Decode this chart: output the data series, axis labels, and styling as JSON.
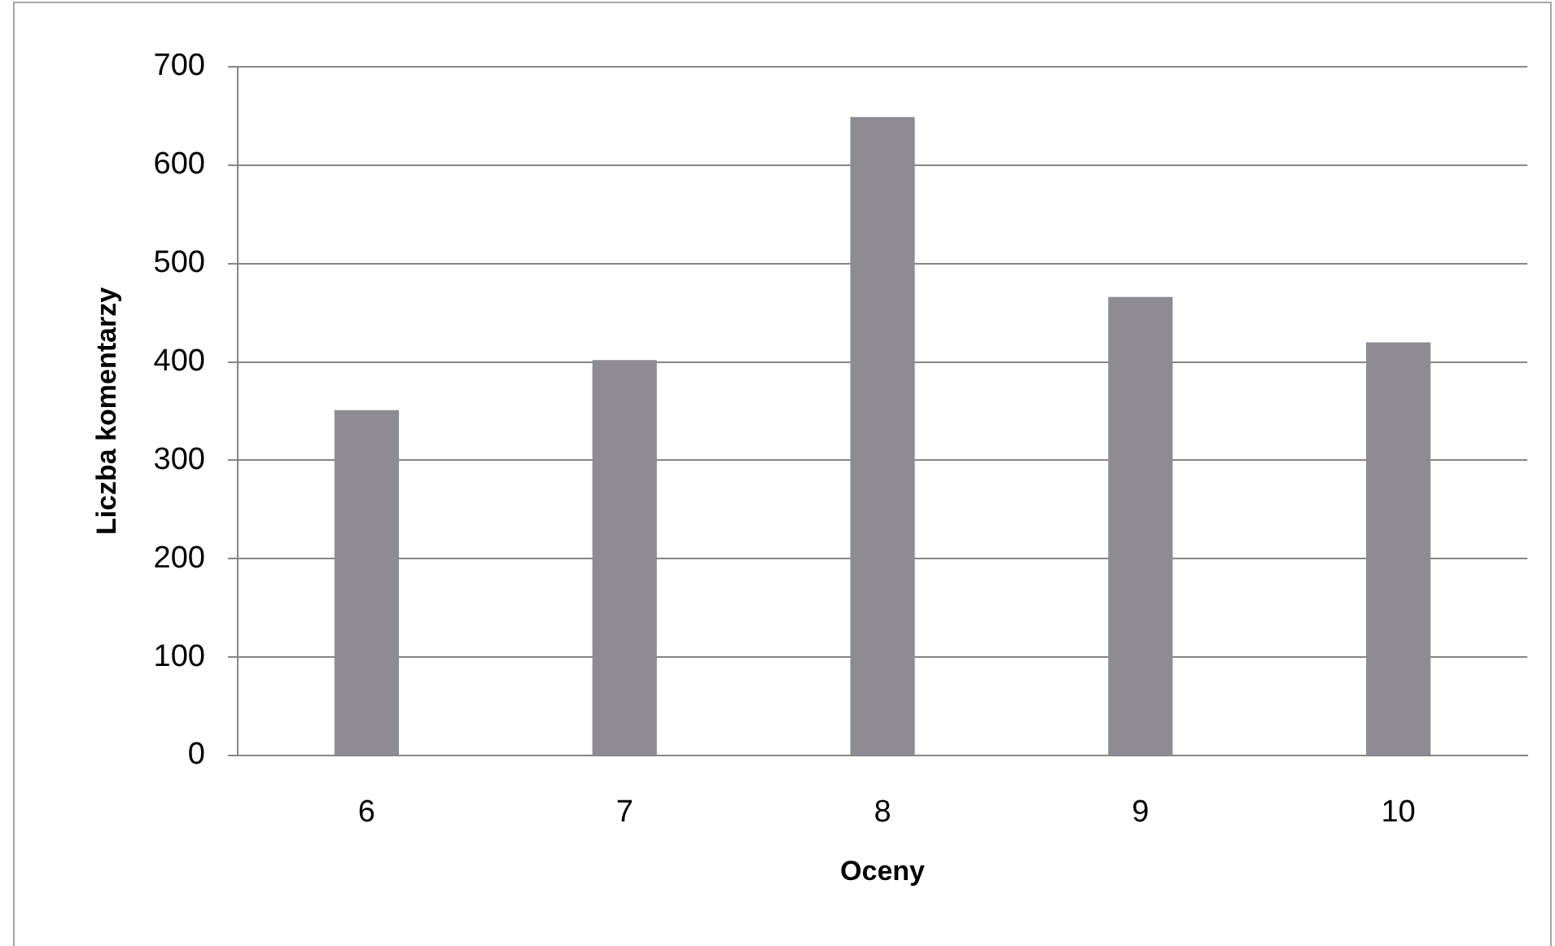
{
  "chart_data": {
    "type": "bar",
    "xlabel": "Oceny",
    "ylabel": "Liczba komentarzy",
    "categories": [
      "6",
      "7",
      "8",
      "9",
      "10"
    ],
    "values": [
      351,
      402,
      649,
      466,
      420
    ],
    "color": "#8e8c92",
    "ylim": [
      0,
      700
    ],
    "yticks": [
      0,
      100,
      200,
      300,
      400,
      500,
      600,
      700
    ],
    "grid": "y",
    "legend": false
  }
}
